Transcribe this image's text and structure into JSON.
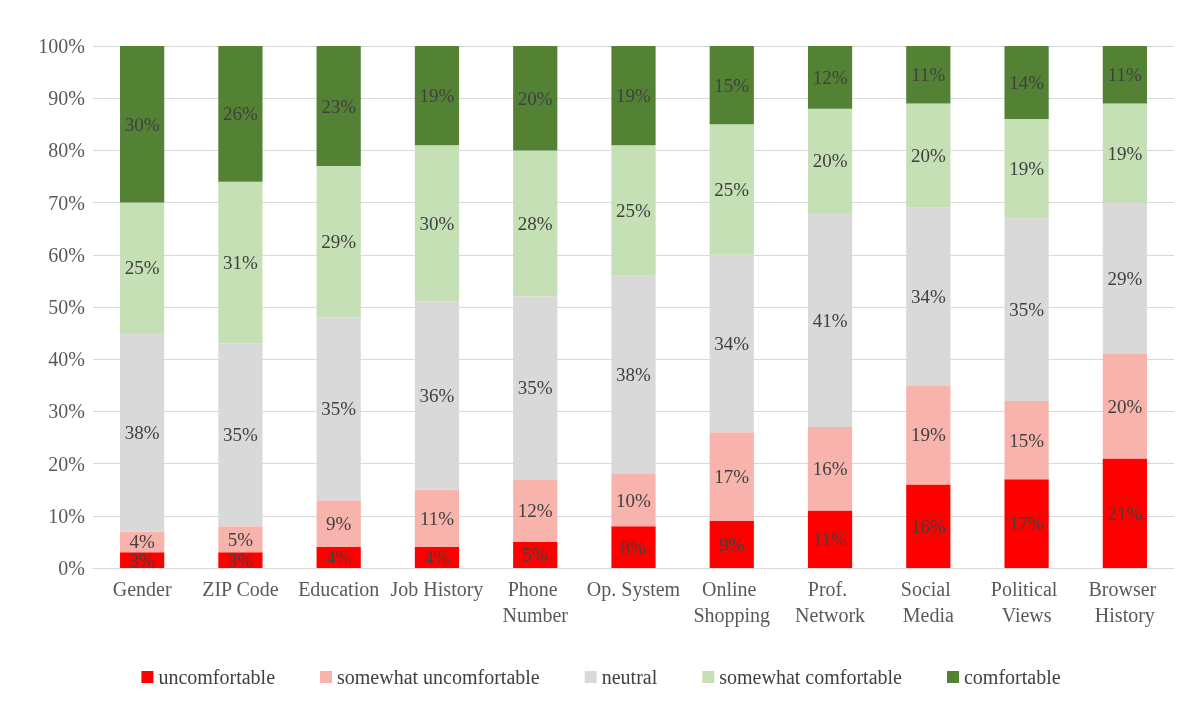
{
  "chart_data": {
    "type": "bar",
    "stacked": true,
    "grid": "y",
    "legend": "bottom",
    "categories": [
      "Gender",
      "ZIP Code",
      "Education",
      "Job History",
      "Phone Number",
      "Op. System",
      "Online Shopping",
      "Prof. Network",
      "Social Media",
      "Political Views",
      "Browser History"
    ],
    "ylim": [
      0,
      100
    ],
    "yticks": [
      {
        "value": 0,
        "label": "0%"
      },
      {
        "value": 10,
        "label": "10%"
      },
      {
        "value": 20,
        "label": "20%"
      },
      {
        "value": 30,
        "label": "30%"
      },
      {
        "value": 40,
        "label": "40%"
      },
      {
        "value": 50,
        "label": "50%"
      },
      {
        "value": 60,
        "label": "60%"
      },
      {
        "value": 70,
        "label": "70%"
      },
      {
        "value": 80,
        "label": "80%"
      },
      {
        "value": 90,
        "label": "90%"
      },
      {
        "value": 100,
        "label": "100%"
      }
    ],
    "series": [
      {
        "name": "uncomfortable",
        "color": "#ff0000",
        "values": [
          3,
          3,
          4,
          4,
          5,
          8,
          9,
          11,
          16,
          17,
          21
        ],
        "value_labels": [
          "3%",
          "3%",
          "4%",
          "4%",
          "5%",
          "8%",
          "9%",
          "11%",
          "16%",
          "17%",
          "21%"
        ]
      },
      {
        "name": "somewhat uncomfortable",
        "color": "#f8b4ac",
        "values": [
          4,
          5,
          9,
          11,
          12,
          10,
          17,
          16,
          19,
          15,
          20
        ],
        "value_labels": [
          "4%",
          "5%",
          "9%",
          "11%",
          "12%",
          "10%",
          "17%",
          "16%",
          "19%",
          "15%",
          "20%"
        ]
      },
      {
        "name": "neutral",
        "color": "#d9d9d9",
        "values": [
          38,
          35,
          35,
          36,
          35,
          38,
          34,
          41,
          34,
          35,
          29
        ],
        "value_labels": [
          "38%",
          "35%",
          "35%",
          "36%",
          "35%",
          "38%",
          "34%",
          "41%",
          "34%",
          "35%",
          "29%"
        ]
      },
      {
        "name": "somewhat comfortable",
        "color": "#c5e0b4",
        "values": [
          25,
          31,
          29,
          30,
          28,
          25,
          25,
          20,
          20,
          19,
          19
        ],
        "value_labels": [
          "25%",
          "31%",
          "29%",
          "30%",
          "28%",
          "25%",
          "25%",
          "20%",
          "20%",
          "19%",
          "19%"
        ]
      },
      {
        "name": "comfortable",
        "color": "#548235",
        "values": [
          30,
          26,
          23,
          19,
          20,
          19,
          15,
          12,
          11,
          14,
          11
        ],
        "value_labels": [
          "30%",
          "26%",
          "23%",
          "19%",
          "20%",
          "19%",
          "15%",
          "12%",
          "11%",
          "14%",
          "11%"
        ]
      }
    ]
  }
}
